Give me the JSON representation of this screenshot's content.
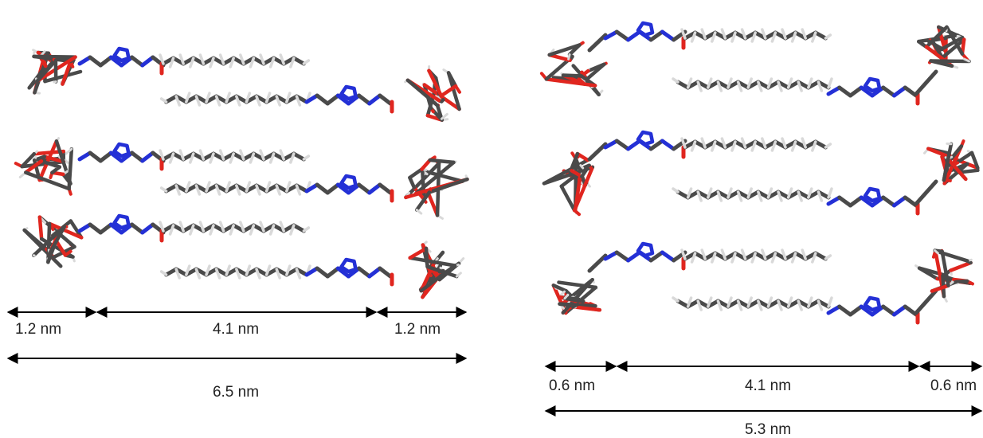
{
  "panels": [
    {
      "id": "left",
      "dimensions": {
        "left_headgroup": "1.2 nm",
        "chain_region": "4.1 nm",
        "right_headgroup": "1.2 nm",
        "total": "6.5 nm"
      }
    },
    {
      "id": "right",
      "dimensions": {
        "left_headgroup": "0.6 nm",
        "chain_region": "4.1 nm",
        "right_headgroup": "0.6 nm",
        "total": "5.3 nm"
      }
    }
  ],
  "colors": {
    "carbon": "#4a4a4a",
    "hydrogen": "#d9d9d9",
    "oxygen": "#e0261f",
    "nitrogen": "#2430d6",
    "arrow": "#000000",
    "text": "#222222"
  }
}
